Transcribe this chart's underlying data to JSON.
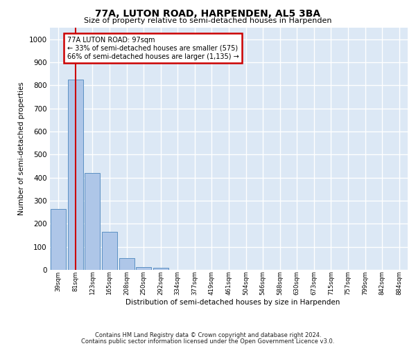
{
  "title1": "77A, LUTON ROAD, HARPENDEN, AL5 3BA",
  "title2": "Size of property relative to semi-detached houses in Harpenden",
  "xlabel": "Distribution of semi-detached houses by size in Harpenden",
  "ylabel": "Number of semi-detached properties",
  "categories": [
    "39sqm",
    "81sqm",
    "123sqm",
    "165sqm",
    "208sqm",
    "250sqm",
    "292sqm",
    "334sqm",
    "377sqm",
    "419sqm",
    "461sqm",
    "504sqm",
    "546sqm",
    "588sqm",
    "630sqm",
    "673sqm",
    "715sqm",
    "757sqm",
    "799sqm",
    "842sqm",
    "884sqm"
  ],
  "values": [
    265,
    825,
    420,
    165,
    50,
    13,
    8,
    0,
    0,
    0,
    0,
    0,
    0,
    0,
    0,
    0,
    0,
    0,
    0,
    0,
    0
  ],
  "bar_color": "#aec6e8",
  "bar_edge_color": "#5b90c3",
  "vline_color": "#cc0000",
  "vline_x": 1.0,
  "annotation_text": "77A LUTON ROAD: 97sqm\n← 33% of semi-detached houses are smaller (575)\n66% of semi-detached houses are larger (1,135) →",
  "annotation_box_facecolor": "#ffffff",
  "annotation_box_edgecolor": "#cc0000",
  "ylim": [
    0,
    1050
  ],
  "yticks": [
    0,
    100,
    200,
    300,
    400,
    500,
    600,
    700,
    800,
    900,
    1000
  ],
  "background_color": "#dce8f5",
  "grid_color": "#ffffff",
  "footer1": "Contains HM Land Registry data © Crown copyright and database right 2024.",
  "footer2": "Contains public sector information licensed under the Open Government Licence v3.0."
}
